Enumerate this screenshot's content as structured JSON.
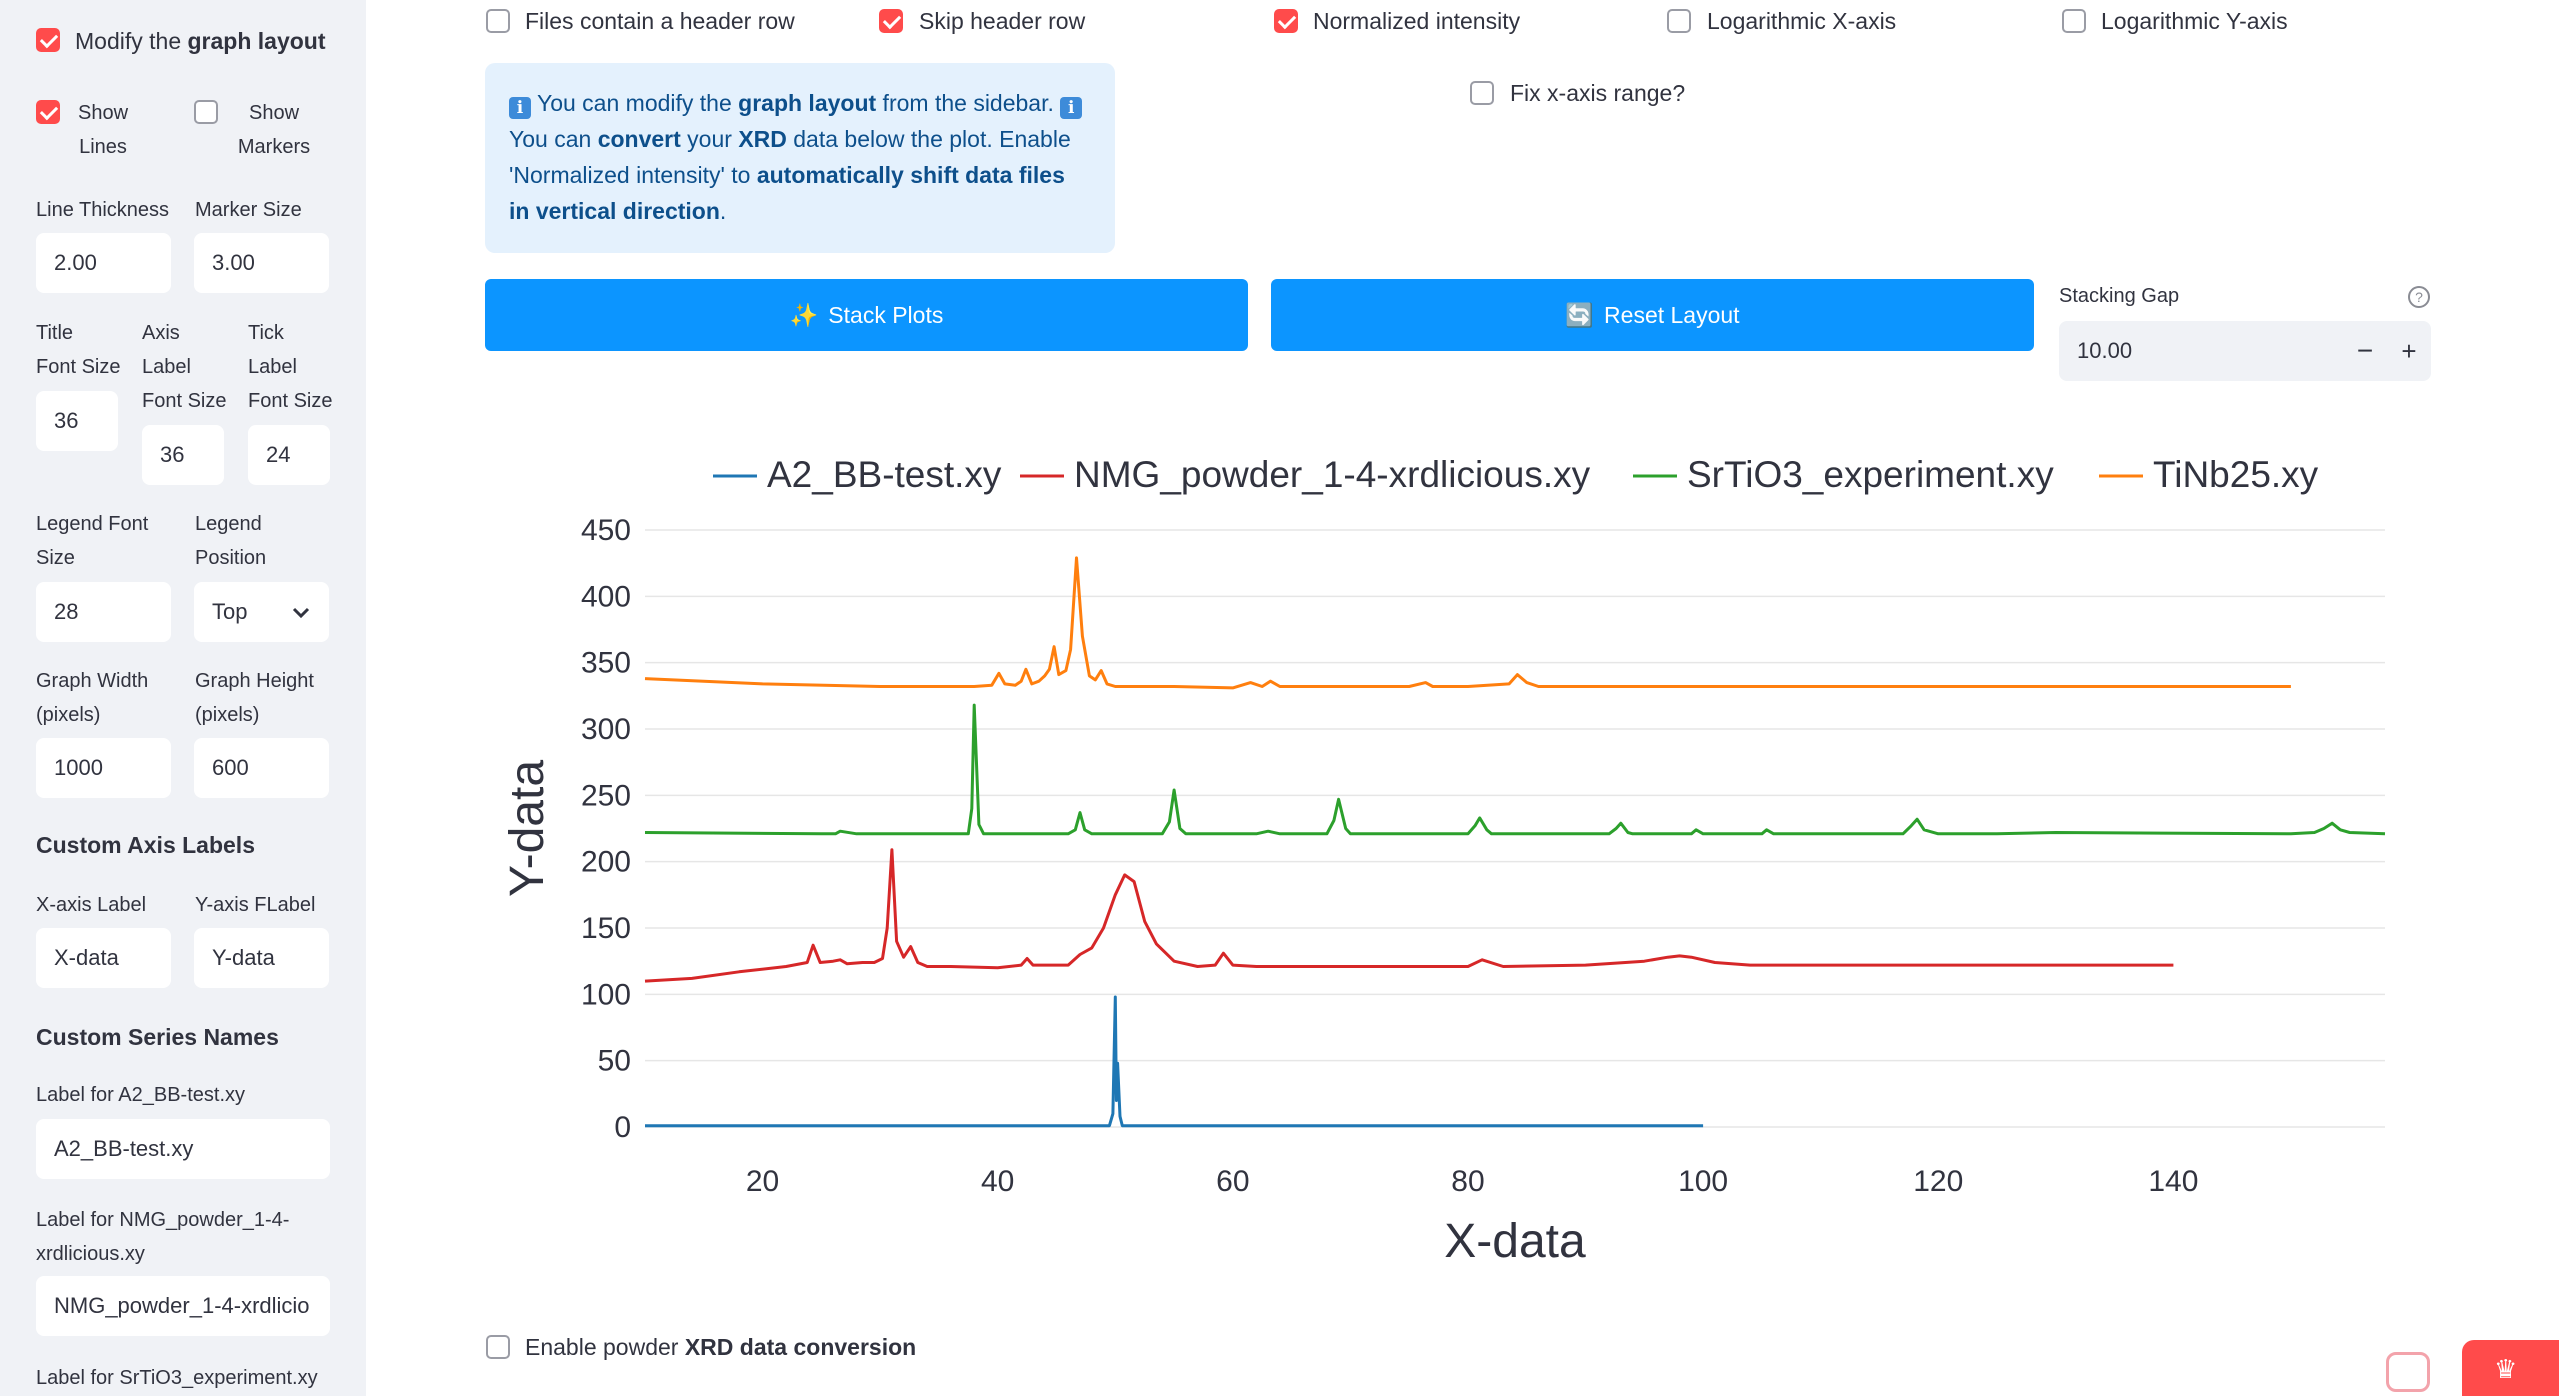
{
  "sidebar": {
    "modify_layout": {
      "label_pre": "Modify the ",
      "label_bold": "graph layout",
      "checked": true
    },
    "show_lines": {
      "line1": "Show",
      "line2": "Lines",
      "checked": true
    },
    "show_markers": {
      "line1": "Show",
      "line2": "Markers",
      "checked": false
    },
    "line_thickness": {
      "label": "Line Thickness",
      "value": "2.00"
    },
    "marker_size": {
      "label": "Marker Size",
      "value": "3.00"
    },
    "title_font_size": {
      "line1": "Title",
      "line2": "Font Size",
      "value": "36"
    },
    "axis_label_font_size": {
      "line1": "Axis",
      "line2": "Label",
      "line3": "Font Size",
      "value": "36"
    },
    "tick_label_font_size": {
      "line1": "Tick",
      "line2": "Label",
      "line3": "Font Size",
      "value": "24"
    },
    "legend_font_size": {
      "line1": "Legend Font",
      "line2": "Size",
      "value": "28"
    },
    "legend_position": {
      "line1": "Legend",
      "line2": "Position",
      "value": "Top"
    },
    "graph_width": {
      "line1": "Graph Width",
      "line2": "(pixels)",
      "value": "1000"
    },
    "graph_height": {
      "line1": "Graph Height",
      "line2": "(pixels)",
      "value": "600"
    },
    "custom_axis_labels": {
      "heading": "Custom Axis Labels",
      "x_label": "X-axis Label",
      "x_value": "X-data",
      "y_label": "Y-axis FLabel",
      "y_value": "Y-data"
    },
    "custom_series_names": {
      "heading": "Custom Series Names",
      "a2_label": "Label for A2_BB-test.xy",
      "a2_value": "A2_BB-test.xy",
      "nmg_label_line1": "Label for NMG_powder_1-4-",
      "nmg_label_line2": "xrdlicious.xy",
      "nmg_value": "NMG_powder_1-4-xrdlicio",
      "srtio3_label": "Label for SrTiO3_experiment.xy"
    }
  },
  "top_options": {
    "header_row": {
      "label": "Files contain a header row",
      "checked": false
    },
    "skip_header": {
      "label": "Skip header row",
      "checked": true
    },
    "normalized": {
      "label": "Normalized intensity",
      "checked": true
    },
    "log_x": {
      "label": "Logarithmic X-axis",
      "checked": false
    },
    "log_y": {
      "label": "Logarithmic Y-axis",
      "checked": false
    },
    "fix_x": {
      "label": "Fix x-axis range?",
      "checked": false
    }
  },
  "info": {
    "icon": "ℹ",
    "p1": "You can modify the ",
    "b1": "graph layout",
    "p2": " from the sidebar.",
    "p3": "You can ",
    "b2": "convert",
    "p4": " your ",
    "b3": "XRD",
    "p5": " data below the plot. Enable 'Normalized intensity' to ",
    "b4": "automatically shift data files in vertical direction",
    "p6": "."
  },
  "buttons": {
    "stack_icon": "✨",
    "stack": "Stack Plots",
    "reset_icon": "🔄",
    "reset": "Reset Layout"
  },
  "stacking_gap": {
    "label": "Stacking Gap",
    "help": "?",
    "value": "10.00",
    "minus": "−",
    "plus": "+"
  },
  "enable_conversion": {
    "pre": "Enable powder ",
    "bold": "XRD data conversion",
    "post": "",
    "checked": false
  },
  "chart_data": {
    "type": "line",
    "xlabel": "X-data",
    "ylabel": "Y-data",
    "xlim": [
      10,
      158
    ],
    "ylim": [
      0,
      450
    ],
    "xticks": [
      20,
      40,
      60,
      80,
      100,
      120,
      140
    ],
    "yticks": [
      0,
      50,
      100,
      150,
      200,
      250,
      300,
      350,
      400,
      450
    ],
    "grid": true,
    "legend_position": "top",
    "series": [
      {
        "name": "A2_BB-test.xy",
        "color": "#1f77b4",
        "x": [
          10,
          30,
          49.5,
          49.8,
          50.0,
          50.1,
          50.2,
          50.4,
          50.6,
          60,
          100
        ],
        "y": [
          1,
          1,
          1,
          10,
          98,
          20,
          48,
          8,
          1,
          1,
          1
        ]
      },
      {
        "name": "NMG_powder_1-4-xrdlicious.xy",
        "color": "#d62728",
        "x": [
          10,
          14,
          18,
          22,
          23.8,
          24.3,
          24.9,
          26,
          26.6,
          27.2,
          28.5,
          29.5,
          30.2,
          30.6,
          31.0,
          31.4,
          32,
          32.6,
          33.2,
          34,
          36,
          40,
          42,
          42.5,
          43,
          46,
          47,
          48,
          49,
          50,
          50.8,
          51.6,
          52.5,
          53.5,
          55,
          57,
          58.5,
          59.2,
          60,
          62,
          70,
          75,
          78,
          80,
          81.2,
          83,
          90,
          95,
          97,
          98,
          99,
          101,
          104,
          110,
          120,
          130,
          140
        ],
        "y": [
          110,
          112,
          117,
          121,
          124,
          137,
          124,
          125,
          126,
          123,
          124,
          124,
          127,
          150,
          209,
          140,
          128,
          136,
          124,
          121,
          121,
          120,
          122,
          127,
          122,
          122,
          130,
          135,
          150,
          175,
          190,
          185,
          155,
          138,
          125,
          121,
          122,
          131,
          122,
          121,
          121,
          121,
          121,
          121,
          126,
          121,
          122,
          125,
          128,
          129,
          128,
          124,
          122,
          122,
          122,
          122,
          122
        ]
      },
      {
        "name": "SrTiO3_experiment.xy",
        "color": "#2ca02c",
        "x": [
          10,
          25,
          26.2,
          26.6,
          28,
          37.5,
          37.8,
          38.0,
          38.4,
          38.8,
          40,
          46,
          46.6,
          47.0,
          47.4,
          48,
          54,
          54.6,
          55.0,
          55.5,
          56,
          62,
          63,
          64,
          68,
          68.6,
          69.0,
          69.6,
          70,
          80,
          80.6,
          81.0,
          81.6,
          82,
          92,
          92.6,
          93.0,
          93.6,
          94,
          99,
          99.4,
          100,
          105,
          105.4,
          106,
          117,
          117.7,
          118.2,
          118.8,
          120,
          125,
          130,
          150,
          152,
          152.8,
          153.5,
          154.2,
          155,
          158
        ],
        "y": [
          222,
          221,
          221,
          223,
          221,
          221,
          240,
          318,
          228,
          221,
          221,
          221,
          224,
          237,
          224,
          221,
          221,
          230,
          254,
          225,
          221,
          221,
          223,
          221,
          221,
          231,
          247,
          225,
          221,
          221,
          227,
          233,
          224,
          221,
          221,
          225,
          229,
          222,
          221,
          221,
          224,
          221,
          221,
          224,
          221,
          221,
          227,
          232,
          224,
          221,
          221,
          222,
          221,
          222,
          225,
          229,
          224,
          222,
          221
        ]
      },
      {
        "name": "TiNb25.xy",
        "color": "#ff7f0e",
        "x": [
          10,
          20,
          30,
          38,
          39.5,
          40.1,
          40.6,
          41.5,
          42,
          42.4,
          42.9,
          43.5,
          44,
          44.4,
          44.8,
          45.2,
          45.8,
          46.2,
          46.7,
          47.2,
          47.8,
          48.3,
          48.8,
          49.3,
          50,
          55,
          60,
          61.5,
          62.5,
          63.2,
          64,
          70,
          75,
          76.4,
          77,
          80,
          83.5,
          84.2,
          85,
          86,
          90,
          100,
          110,
          150
        ],
        "y": [
          338,
          334,
          332,
          332,
          333,
          342,
          334,
          333,
          336,
          345,
          334,
          336,
          340,
          345,
          362,
          341,
          344,
          360,
          429,
          370,
          340,
          337,
          344,
          334,
          332,
          332,
          331,
          335,
          332,
          336,
          332,
          332,
          332,
          335,
          332,
          332,
          334,
          341,
          335,
          332,
          332,
          332,
          332,
          332
        ]
      }
    ]
  }
}
